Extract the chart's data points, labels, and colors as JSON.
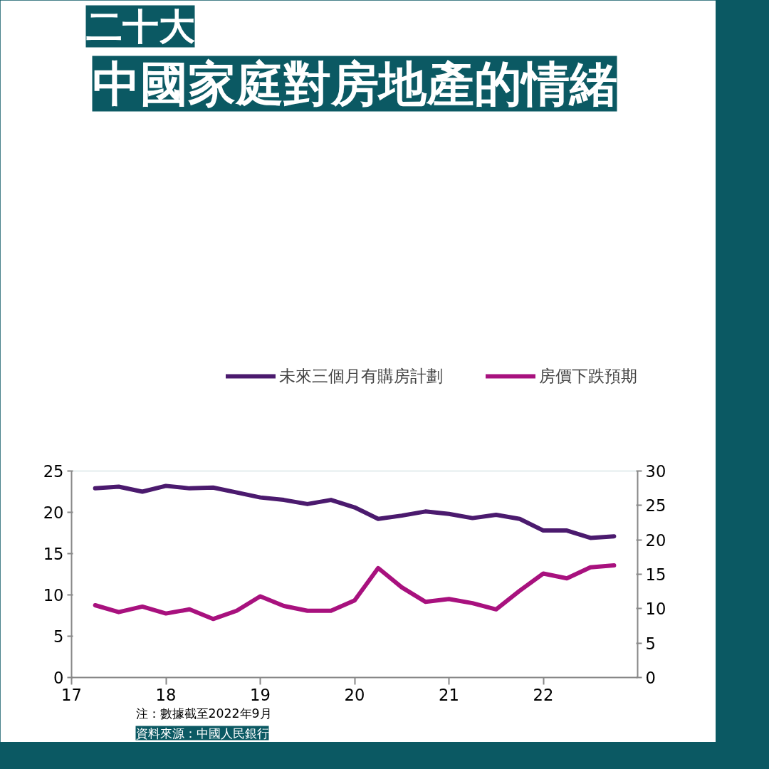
{
  "chart_data": {
    "type": "line",
    "subtitle": "二十大",
    "title": "中國家庭對房地產的情緒",
    "x": [
      17.25,
      17.5,
      17.75,
      18.0,
      18.25,
      18.5,
      18.75,
      19.0,
      19.25,
      19.5,
      19.75,
      20.0,
      20.25,
      20.5,
      20.75,
      21.0,
      21.25,
      21.5,
      21.75,
      22.0,
      22.25,
      22.5,
      22.75
    ],
    "series": [
      {
        "name": "未來三個月有購房計劃",
        "color": "#4b1a6e",
        "values": [
          22.9,
          23.1,
          22.5,
          23.2,
          22.9,
          23.0,
          22.4,
          21.8,
          21.5,
          21.0,
          21.5,
          20.6,
          19.2,
          19.6,
          20.1,
          19.8,
          19.3,
          19.7,
          19.2,
          17.8,
          17.8,
          16.9,
          17.1
        ]
      },
      {
        "name": "房價下跌預期",
        "color": "#a8117e",
        "axis": "y2",
        "values": [
          10.5,
          9.5,
          10.3,
          9.3,
          9.9,
          8.5,
          9.7,
          11.8,
          10.4,
          9.7,
          9.7,
          11.2,
          15.9,
          13.1,
          11.0,
          11.4,
          10.8,
          9.9,
          12.6,
          15.1,
          14.4,
          16.0,
          16.3
        ]
      }
    ],
    "xlim": [
      17,
      23
    ],
    "xticks": [
      17,
      18,
      19,
      20,
      21,
      22
    ],
    "ylim": [
      0,
      25
    ],
    "yticks": [
      0,
      5,
      10,
      15,
      20,
      25
    ],
    "y2lim": [
      0,
      30
    ],
    "y2ticks": [
      0,
      5,
      10,
      15,
      20,
      25,
      30
    ],
    "legend": "top",
    "grid": false,
    "line_style": "solid",
    "annotations": [
      "注：數據截至2022年9月",
      "資料來源：中國人民銀行"
    ]
  }
}
